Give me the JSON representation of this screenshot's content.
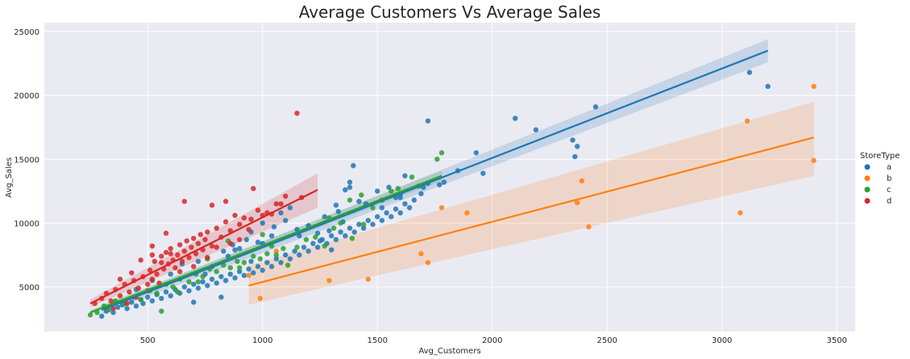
{
  "chart_data": {
    "type": "scatter",
    "title": "Average Customers Vs Average Sales",
    "xlabel": "Avg_Customers",
    "ylabel": "Avg_Sales",
    "xlim": [
      50,
      3580
    ],
    "ylim": [
      1500,
      25700
    ],
    "xticks": [
      500,
      1000,
      1500,
      2000,
      2500,
      3000,
      3500
    ],
    "yticks": [
      5000,
      10000,
      15000,
      20000,
      25000
    ],
    "grid": true,
    "legend": {
      "title": "StoreType",
      "placement": "right"
    },
    "series": [
      {
        "name": "a",
        "color": "#1f77b4",
        "points": [
          [
            300,
            2700
          ],
          [
            320,
            3100
          ],
          [
            350,
            3000
          ],
          [
            370,
            3400
          ],
          [
            390,
            3600
          ],
          [
            410,
            3300
          ],
          [
            430,
            3800
          ],
          [
            450,
            3500
          ],
          [
            470,
            4000
          ],
          [
            480,
            3700
          ],
          [
            500,
            4200
          ],
          [
            520,
            3900
          ],
          [
            540,
            4400
          ],
          [
            560,
            4100
          ],
          [
            580,
            4600
          ],
          [
            600,
            4300
          ],
          [
            620,
            4800
          ],
          [
            640,
            4500
          ],
          [
            660,
            5000
          ],
          [
            680,
            4700
          ],
          [
            700,
            5200
          ],
          [
            720,
            4900
          ],
          [
            740,
            5400
          ],
          [
            760,
            5100
          ],
          [
            780,
            5600
          ],
          [
            800,
            5300
          ],
          [
            820,
            5800
          ],
          [
            840,
            5500
          ],
          [
            860,
            6000
          ],
          [
            880,
            5700
          ],
          [
            900,
            6200
          ],
          [
            920,
            5900
          ],
          [
            940,
            6400
          ],
          [
            960,
            6100
          ],
          [
            980,
            6600
          ],
          [
            1000,
            6300
          ],
          [
            1020,
            6900
          ],
          [
            1040,
            6600
          ],
          [
            1060,
            7200
          ],
          [
            1080,
            6900
          ],
          [
            1100,
            7500
          ],
          [
            1120,
            7200
          ],
          [
            1140,
            7800
          ],
          [
            1160,
            7500
          ],
          [
            1180,
            8100
          ],
          [
            1200,
            7800
          ],
          [
            1220,
            8400
          ],
          [
            1240,
            8100
          ],
          [
            1260,
            8700
          ],
          [
            1280,
            8400
          ],
          [
            1300,
            9000
          ],
          [
            1320,
            8700
          ],
          [
            1340,
            9300
          ],
          [
            1360,
            9000
          ],
          [
            1380,
            9600
          ],
          [
            1400,
            9300
          ],
          [
            1420,
            9900
          ],
          [
            1440,
            9600
          ],
          [
            1460,
            10200
          ],
          [
            1480,
            9900
          ],
          [
            1500,
            10500
          ],
          [
            1520,
            10200
          ],
          [
            1540,
            10800
          ],
          [
            1560,
            10500
          ],
          [
            1580,
            11100
          ],
          [
            1600,
            10800
          ],
          [
            1620,
            11500
          ],
          [
            1640,
            11200
          ],
          [
            1660,
            11800
          ],
          [
            1300,
            7900
          ],
          [
            1320,
            11400
          ],
          [
            1360,
            12600
          ],
          [
            1380,
            12800
          ],
          [
            1395,
            14500
          ],
          [
            1050,
            9700
          ],
          [
            1000,
            10000
          ],
          [
            1080,
            10800
          ],
          [
            1120,
            11200
          ],
          [
            1380,
            13200
          ],
          [
            1600,
            12300
          ],
          [
            1620,
            13700
          ],
          [
            1690,
            12300
          ],
          [
            1720,
            18000
          ],
          [
            1770,
            13000
          ],
          [
            1790,
            13200
          ],
          [
            1850,
            14100
          ],
          [
            1930,
            15500
          ],
          [
            1960,
            13900
          ],
          [
            2100,
            18200
          ],
          [
            2190,
            17300
          ],
          [
            2350,
            16500
          ],
          [
            2360,
            15200
          ],
          [
            2370,
            16000
          ],
          [
            2450,
            19100
          ],
          [
            3120,
            21800
          ],
          [
            3200,
            20700
          ],
          [
            850,
            7400
          ],
          [
            900,
            8000
          ],
          [
            950,
            7000
          ],
          [
            980,
            8500
          ],
          [
            1150,
            9500
          ],
          [
            1200,
            9800
          ],
          [
            1240,
            9200
          ],
          [
            1270,
            10500
          ],
          [
            1330,
            10900
          ],
          [
            1450,
            11500
          ],
          [
            1500,
            12500
          ],
          [
            1550,
            12800
          ],
          [
            1580,
            12000
          ],
          [
            700,
            3800
          ],
          [
            750,
            6000
          ],
          [
            820,
            4200
          ],
          [
            880,
            7900
          ],
          [
            930,
            8700
          ],
          [
            1000,
            8400
          ],
          [
            1100,
            10200
          ],
          [
            1160,
            9000
          ],
          [
            1250,
            8600
          ],
          [
            1290,
            9400
          ],
          [
            1350,
            10100
          ],
          [
            1420,
            11700
          ],
          [
            1520,
            11200
          ],
          [
            1600,
            12000
          ],
          [
            1700,
            12800
          ],
          [
            1720,
            13100
          ],
          [
            450,
            4800
          ],
          [
            520,
            5500
          ],
          [
            600,
            6000
          ],
          [
            650,
            6800
          ],
          [
            720,
            7000
          ],
          [
            780,
            6600
          ],
          [
            830,
            7800
          ],
          [
            870,
            8300
          ],
          [
            950,
            9300
          ],
          [
            1040,
            9000
          ]
        ],
        "fit": {
          "x": [
            300,
            3200
          ],
          "y": [
            3200,
            23500
          ],
          "band": [
            [
              300,
              2900,
              3500
            ],
            [
              3200,
              22600,
              24400
            ]
          ]
        }
      },
      {
        "name": "b",
        "color": "#ff7f0e",
        "points": [
          [
            940,
            5900
          ],
          [
            990,
            4100
          ],
          [
            1060,
            7800
          ],
          [
            1290,
            5500
          ],
          [
            1460,
            5600
          ],
          [
            1690,
            7600
          ],
          [
            1720,
            6900
          ],
          [
            1780,
            11200
          ],
          [
            1890,
            10800
          ],
          [
            2370,
            11600
          ],
          [
            2390,
            13300
          ],
          [
            2420,
            9700
          ],
          [
            3080,
            10800
          ],
          [
            3110,
            18000
          ],
          [
            3400,
            20700
          ],
          [
            3400,
            14900
          ]
        ],
        "fit": {
          "x": [
            940,
            3400
          ],
          "y": [
            5100,
            16700
          ],
          "band": [
            [
              940,
              3600,
              6700
            ],
            [
              3400,
              13700,
              19500
            ]
          ]
        }
      },
      {
        "name": "c",
        "color": "#2ca02c",
        "points": [
          [
            250,
            2800
          ],
          [
            280,
            3000
          ],
          [
            310,
            3500
          ],
          [
            330,
            3200
          ],
          [
            360,
            3900
          ],
          [
            400,
            3700
          ],
          [
            440,
            4200
          ],
          [
            470,
            4000
          ],
          [
            510,
            4700
          ],
          [
            540,
            4500
          ],
          [
            560,
            3100
          ],
          [
            580,
            5200
          ],
          [
            610,
            5000
          ],
          [
            640,
            5600
          ],
          [
            680,
            5400
          ],
          [
            710,
            6000
          ],
          [
            740,
            5800
          ],
          [
            770,
            6400
          ],
          [
            800,
            6200
          ],
          [
            830,
            6700
          ],
          [
            860,
            6500
          ],
          [
            890,
            7000
          ],
          [
            920,
            6900
          ],
          [
            960,
            7400
          ],
          [
            990,
            7200
          ],
          [
            1020,
            7600
          ],
          [
            1060,
            7500
          ],
          [
            1090,
            8000
          ],
          [
            1110,
            6700
          ],
          [
            1150,
            8100
          ],
          [
            1190,
            8700
          ],
          [
            1230,
            8900
          ],
          [
            1270,
            8200
          ],
          [
            1310,
            9600
          ],
          [
            1340,
            10000
          ],
          [
            1380,
            11800
          ],
          [
            1430,
            12200
          ],
          [
            1440,
            9900
          ],
          [
            1480,
            11200
          ],
          [
            1520,
            11800
          ],
          [
            1560,
            12500
          ],
          [
            1590,
            12700
          ],
          [
            1650,
            13600
          ],
          [
            1680,
            12900
          ],
          [
            1760,
            15000
          ],
          [
            1780,
            15500
          ],
          [
            1390,
            8800
          ],
          [
            1290,
            10400
          ],
          [
            1040,
            8200
          ],
          [
            900,
            6500
          ],
          [
            720,
            5400
          ],
          [
            630,
            4600
          ],
          [
            760,
            7200
          ],
          [
            850,
            8600
          ],
          [
            1000,
            9100
          ]
        ],
        "fit": {
          "x": [
            250,
            1780
          ],
          "y": [
            3000,
            13700
          ],
          "band": [
            [
              250,
              2800,
              3200
            ],
            [
              1780,
              13300,
              14100
            ]
          ]
        }
      },
      {
        "name": "d",
        "color": "#d62728",
        "points": [
          [
            270,
            3700
          ],
          [
            300,
            4100
          ],
          [
            320,
            4500
          ],
          [
            340,
            3900
          ],
          [
            360,
            4800
          ],
          [
            380,
            4300
          ],
          [
            400,
            5200
          ],
          [
            420,
            4600
          ],
          [
            440,
            5500
          ],
          [
            460,
            4900
          ],
          [
            480,
            5800
          ],
          [
            500,
            5200
          ],
          [
            510,
            6300
          ],
          [
            520,
            5600
          ],
          [
            530,
            7000
          ],
          [
            540,
            6000
          ],
          [
            550,
            5300
          ],
          [
            560,
            7400
          ],
          [
            570,
            6400
          ],
          [
            580,
            7700
          ],
          [
            590,
            6800
          ],
          [
            600,
            8000
          ],
          [
            610,
            7100
          ],
          [
            620,
            6500
          ],
          [
            630,
            7500
          ],
          [
            640,
            8300
          ],
          [
            650,
            7000
          ],
          [
            660,
            7800
          ],
          [
            670,
            8600
          ],
          [
            680,
            7300
          ],
          [
            690,
            8100
          ],
          [
            700,
            8800
          ],
          [
            710,
            7600
          ],
          [
            720,
            8400
          ],
          [
            730,
            9100
          ],
          [
            740,
            7900
          ],
          [
            750,
            8700
          ],
          [
            760,
            9300
          ],
          [
            780,
            8200
          ],
          [
            800,
            9600
          ],
          [
            820,
            8900
          ],
          [
            840,
            10100
          ],
          [
            860,
            9400
          ],
          [
            880,
            10600
          ],
          [
            900,
            9900
          ],
          [
            920,
            10400
          ],
          [
            950,
            10300
          ],
          [
            980,
            11000
          ],
          [
            1000,
            10600
          ],
          [
            1020,
            10800
          ],
          [
            1040,
            10700
          ],
          [
            1060,
            11500
          ],
          [
            1080,
            11500
          ],
          [
            1100,
            12100
          ],
          [
            1150,
            18600
          ],
          [
            1170,
            12000
          ],
          [
            960,
            12700
          ],
          [
            840,
            11700
          ],
          [
            780,
            11400
          ],
          [
            660,
            11700
          ],
          [
            580,
            9200
          ],
          [
            520,
            8200
          ],
          [
            470,
            7100
          ],
          [
            430,
            6100
          ],
          [
            380,
            5600
          ],
          [
            520,
            7500
          ],
          [
            560,
            6900
          ],
          [
            600,
            7600
          ],
          [
            640,
            6200
          ],
          [
            700,
            6600
          ],
          [
            760,
            7300
          ],
          [
            800,
            8100
          ],
          [
            860,
            8400
          ],
          [
            900,
            8700
          ],
          [
            940,
            9500
          ],
          [
            500,
            4700
          ],
          [
            450,
            4200
          ],
          [
            410,
            3700
          ],
          [
            350,
            3300
          ]
        ],
        "fit": {
          "x": [
            250,
            1240
          ],
          "y": [
            3700,
            12600
          ],
          "band": [
            [
              250,
              3400,
              4000
            ],
            [
              1240,
              11200,
              13900
            ]
          ]
        }
      }
    ]
  }
}
